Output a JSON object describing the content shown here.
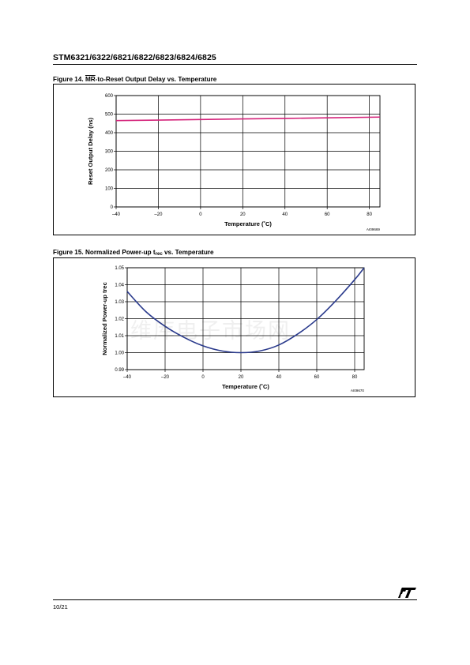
{
  "header": {
    "title": "STM6321/6322/6821/6822/6823/6824/6825"
  },
  "figure14": {
    "title_prefix": "Figure 14. ",
    "title_overline": "MR",
    "title_suffix": "-to-Reset Output Delay vs. Temperature",
    "code": "AI09669"
  },
  "figure15": {
    "title_prefix": "Figure 15. Normalized Power-up t",
    "title_sub": "rec",
    "title_suffix": " vs. Temperature",
    "code": "AI09670"
  },
  "watermark": "维库电子市场网",
  "footer": {
    "page": "10/21"
  },
  "colors": {
    "series14": "#d4237a",
    "series15": "#2a3a8c",
    "grid": "#000000"
  },
  "chart_data": [
    {
      "type": "line",
      "xlabel": "Temperature (˚C)",
      "ylabel": "Reset Output Delay (ns)",
      "xlim": [
        -40,
        85
      ],
      "ylim": [
        0,
        600
      ],
      "xticks": [
        -40,
        -20,
        0,
        20,
        40,
        60,
        80
      ],
      "xtick_labels": [
        "–40",
        "–20",
        "0",
        "20",
        "40",
        "60",
        "80"
      ],
      "yticks": [
        0,
        100,
        200,
        300,
        400,
        500,
        600
      ],
      "ytick_labels": [
        "0",
        "100",
        "200",
        "300",
        "400",
        "500",
        "600"
      ],
      "grid": true,
      "series": [
        {
          "x": [
            -40,
            -20,
            0,
            20,
            40,
            60,
            85
          ],
          "y": [
            465,
            468,
            471,
            474,
            477,
            480,
            484
          ]
        }
      ]
    },
    {
      "type": "line",
      "xlabel": "Temperature (˚C)",
      "ylabel": "Normalized Power-up trec",
      "xlim": [
        -40,
        85
      ],
      "ylim": [
        0.99,
        1.05
      ],
      "xticks": [
        -40,
        -20,
        0,
        20,
        40,
        60,
        80
      ],
      "xtick_labels": [
        "–40",
        "–20",
        "0",
        "20",
        "40",
        "60",
        "80"
      ],
      "yticks": [
        0.99,
        1.0,
        1.01,
        1.02,
        1.03,
        1.04,
        1.05
      ],
      "ytick_labels": [
        "0.99",
        "1.00",
        "1.01",
        "1.02",
        "1.03",
        "1.04",
        "1.05"
      ],
      "grid": true,
      "series": [
        {
          "x": [
            -40,
            -30,
            -20,
            -10,
            0,
            10,
            20,
            30,
            40,
            50,
            60,
            70,
            80,
            85
          ],
          "y": [
            1.036,
            1.024,
            1.0155,
            1.009,
            1.004,
            1.001,
            1.0,
            1.001,
            1.0045,
            1.011,
            1.0195,
            1.0305,
            1.043,
            1.05
          ]
        }
      ]
    }
  ]
}
